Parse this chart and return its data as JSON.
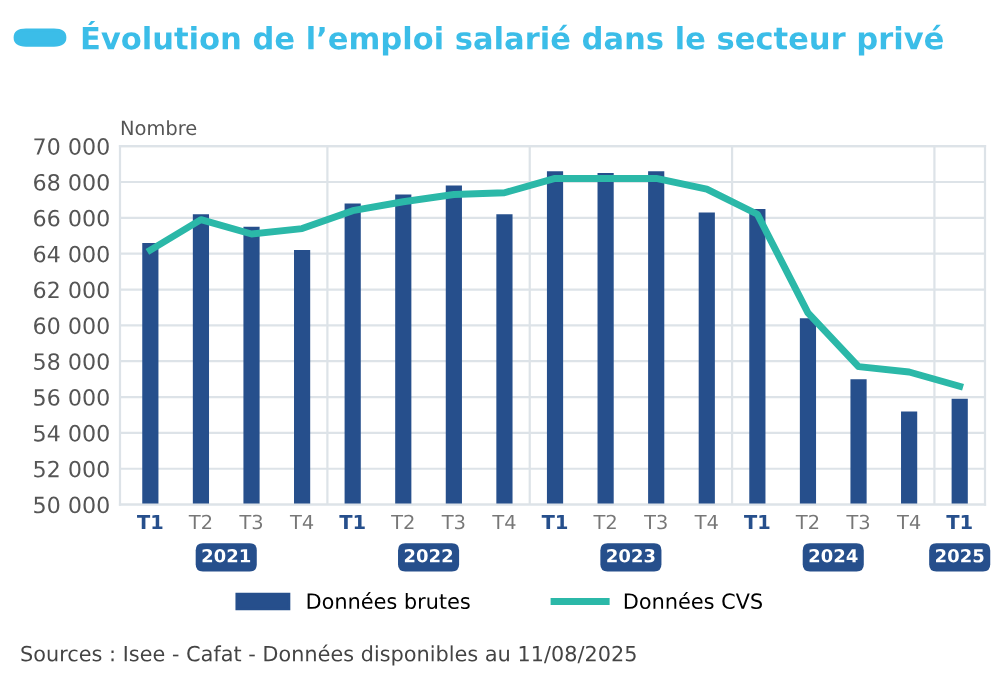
{
  "chart_data": {
    "type": "bar",
    "title": "Évolution de l’emploi salarié dans le secteur privé",
    "ylabel": "Nombre",
    "categories": [
      "T1",
      "T2",
      "T3",
      "T4",
      "T1",
      "T2",
      "T3",
      "T4",
      "T1",
      "T2",
      "T3",
      "T4",
      "T1",
      "T2",
      "T3",
      "T4",
      "T1"
    ],
    "series": [
      {
        "name": "Données brutes",
        "color": "#264f8c",
        "values": [
          64600,
          66200,
          65500,
          64200,
          66800,
          67300,
          67800,
          66200,
          68600,
          68500,
          68600,
          66300,
          66500,
          60400,
          57000,
          55200,
          55900
        ]
      },
      {
        "name": "Données CVS",
        "type": "line",
        "color": "#2bb8a8",
        "values": [
          64200,
          65900,
          65100,
          65400,
          66400,
          66900,
          67300,
          67400,
          68200,
          68200,
          68200,
          67600,
          66200,
          60700,
          57700,
          57400,
          56600
        ]
      }
    ],
    "ylim": [
      50000,
      70000
    ],
    "yticks": [
      {
        "value": 50000,
        "label": "50 000"
      },
      {
        "value": 52000,
        "label": "52 000"
      },
      {
        "value": 54000,
        "label": "54 000"
      },
      {
        "value": 56000,
        "label": "56 000"
      },
      {
        "value": 58000,
        "label": "58 000"
      },
      {
        "value": 60000,
        "label": "60 000"
      },
      {
        "value": 62000,
        "label": "62 000"
      },
      {
        "value": 64000,
        "label": "64 000"
      },
      {
        "value": 66000,
        "label": "66 000"
      },
      {
        "value": 68000,
        "label": "68 000"
      },
      {
        "value": 70000,
        "label": "70 000"
      }
    ],
    "grid": "y",
    "legend": "bottom",
    "marker": "none",
    "line_style": "solid",
    "annotations": [
      "2021",
      "2022",
      "2023",
      "2024",
      "2025",
      "Sources : Isee - Cafat - Données disponibles au 11/08/2025"
    ]
  }
}
